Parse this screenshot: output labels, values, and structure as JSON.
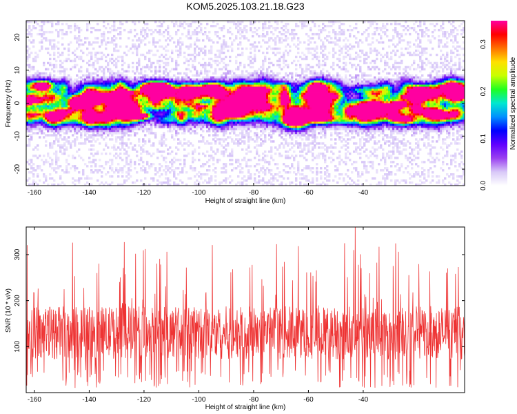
{
  "title": "KOM5.2025.103.21.18.G23",
  "chart_data": [
    {
      "type": "heatmap",
      "xlabel": "Height of straight line (km)",
      "ylabel": "Frequency (Hz)",
      "xlim": [
        -163,
        -3
      ],
      "ylim": [
        -25,
        25
      ],
      "x_ticks": [
        -160,
        -140,
        -120,
        -100,
        -80,
        -60,
        -40
      ],
      "y_ticks": [
        -20,
        -10,
        0,
        10,
        20
      ],
      "colorbar": {
        "label": "Normalized spectral amplitude",
        "range": [
          0.0,
          0.35
        ],
        "ticks": [
          0.0,
          0.1,
          0.2,
          0.3
        ],
        "colormap": [
          "#ffffff",
          "#d8c8f8",
          "#9a40f0",
          "#6000ff",
          "#0000ff",
          "#0090ff",
          "#00e8d0",
          "#20ff20",
          "#c8ff00",
          "#ffe000",
          "#ff7000",
          "#ff0000",
          "#ff00a0"
        ]
      },
      "band": {
        "center_hz": 0,
        "half_width_hz": 4,
        "peak_x": -130,
        "peak_value": 0.35
      }
    },
    {
      "type": "line",
      "xlabel": "Height of straight line (km)",
      "ylabel": "SNR (10 * v/v)",
      "xlim": [
        -163,
        -3
      ],
      "ylim": [
        0,
        360
      ],
      "x_ticks": [
        -160,
        -140,
        -120,
        -100,
        -80,
        -60,
        -40
      ],
      "y_ticks": [
        100,
        200,
        300
      ],
      "line_color": "#ee3333",
      "typical_range": [
        20,
        230
      ],
      "max_value": 360
    }
  ]
}
